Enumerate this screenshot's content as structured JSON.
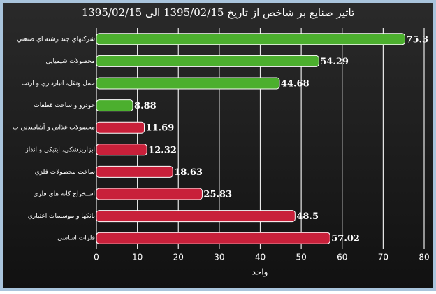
{
  "chart_data": {
    "type": "bar",
    "orientation": "horizontal",
    "title": "تاثیر صنایع بر شاخص از تاریخ 1395/02/15 الی 1395/02/15",
    "xlabel": "واحد",
    "categories": [
      "شرکتهاي چند رشته اي صنعتي",
      "محصولات شيميايي",
      "حمل ونقل، انبارداري و ارتب",
      "خودرو و ساخت قطعات",
      "محصولات غذايي و آشاميدني ب",
      "ابزارپزشكي، اپتيكي و انداز",
      "ساخت محصولات فلزي",
      "استخراج كانه هاي فلزي",
      "بانكها و موسسات اعتباري",
      "فلزات اساسي"
    ],
    "values": [
      75.3,
      54.29,
      44.68,
      8.88,
      11.69,
      12.32,
      18.63,
      25.83,
      48.5,
      57.02
    ],
    "colors": [
      "#4caf2e",
      "#4caf2e",
      "#4caf2e",
      "#4caf2e",
      "#c8203a",
      "#c8203a",
      "#c8203a",
      "#c8203a",
      "#c8203a",
      "#c8203a"
    ],
    "xlim": [
      0,
      80
    ],
    "xticks": [
      0,
      10,
      20,
      30,
      40,
      50,
      60,
      70,
      80
    ],
    "grid": true
  }
}
